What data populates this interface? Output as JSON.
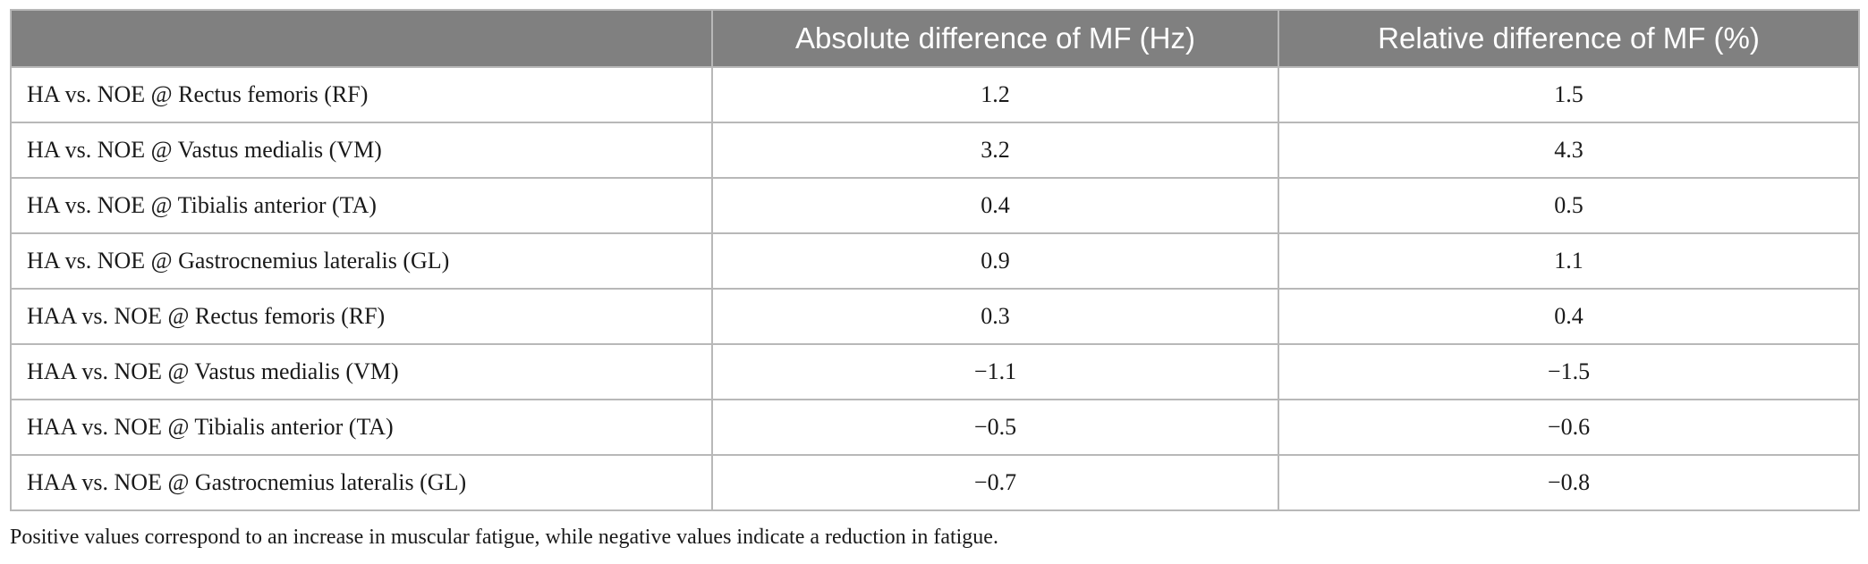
{
  "table": {
    "headers": [
      "",
      "Absolute difference of MF (Hz)",
      "Relative difference of MF (%)"
    ],
    "rows": [
      {
        "label": "HA vs. NOE @ Rectus femoris (RF)",
        "abs": "1.2",
        "rel": "1.5"
      },
      {
        "label": "HA vs. NOE @ Vastus medialis (VM)",
        "abs": "3.2",
        "rel": "4.3"
      },
      {
        "label": "HA vs. NOE @ Tibialis anterior (TA)",
        "abs": "0.4",
        "rel": "0.5"
      },
      {
        "label": "HA vs. NOE @ Gastrocnemius lateralis (GL)",
        "abs": "0.9",
        "rel": "1.1"
      },
      {
        "label": "HAA vs. NOE @ Rectus femoris (RF)",
        "abs": "0.3",
        "rel": "0.4"
      },
      {
        "label": "HAA vs. NOE @ Vastus medialis (VM)",
        "abs": "−1.1",
        "rel": "−1.5"
      },
      {
        "label": "HAA vs. NOE @ Tibialis anterior (TA)",
        "abs": "−0.5",
        "rel": "−0.6"
      },
      {
        "label": "HAA vs. NOE @ Gastrocnemius lateralis (GL)",
        "abs": "−0.7",
        "rel": "−0.8"
      }
    ]
  },
  "footnote": "Positive values correspond to an increase in muscular fatigue, while negative values indicate a reduction in fatigue.",
  "colors": {
    "header_bg": "#808080",
    "header_text": "#ffffff",
    "grid": "#b8b8b8"
  }
}
